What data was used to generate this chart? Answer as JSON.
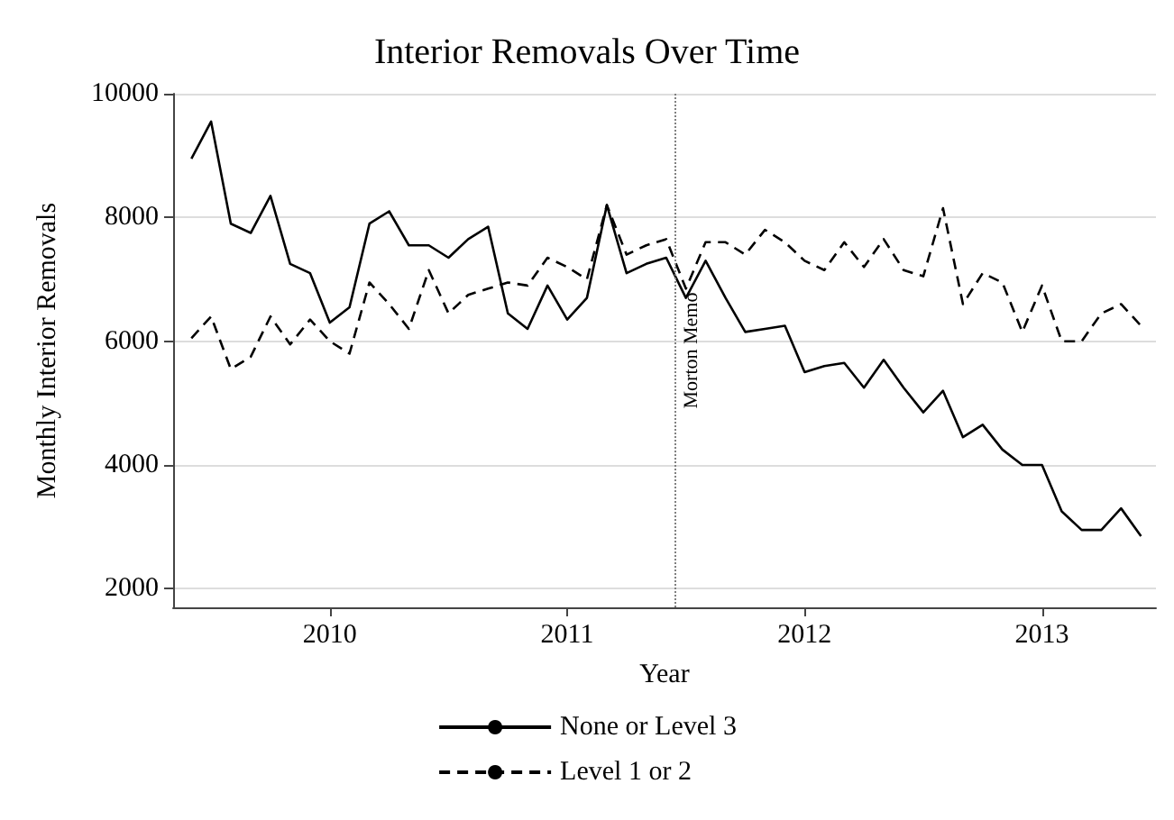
{
  "chart_data": {
    "type": "line",
    "title": "Interior Removals Over Time",
    "xlabel": "Year",
    "ylabel": "Monthly Interior Removals",
    "x": [
      2009.417,
      2009.5,
      2009.583,
      2009.667,
      2009.75,
      2009.833,
      2009.917,
      2010.0,
      2010.083,
      2010.167,
      2010.25,
      2010.333,
      2010.417,
      2010.5,
      2010.583,
      2010.667,
      2010.75,
      2010.833,
      2010.917,
      2011.0,
      2011.083,
      2011.167,
      2011.25,
      2011.333,
      2011.417,
      2011.5,
      2011.583,
      2011.667,
      2011.75,
      2011.833,
      2011.917,
      2012.0,
      2012.083,
      2012.167,
      2012.25,
      2012.333,
      2012.417,
      2012.5,
      2012.583,
      2012.667,
      2012.75,
      2012.833,
      2012.917,
      2013.0,
      2013.083,
      2013.167,
      2013.25,
      2013.333,
      2013.417
    ],
    "series": [
      {
        "name": "None or Level 3",
        "color": "#000000",
        "line_style": "solid",
        "values": [
          8950,
          9550,
          7900,
          7750,
          8350,
          7250,
          7100,
          6300,
          6550,
          7900,
          8100,
          7550,
          7550,
          7350,
          7650,
          7850,
          6450,
          6200,
          6900,
          6350,
          6700,
          8200,
          7100,
          7250,
          7350,
          6700,
          7300,
          6700,
          6150,
          6200,
          6250,
          5500,
          5600,
          5650,
          5250,
          5700,
          5250,
          4850,
          5200,
          4450,
          4650,
          4250,
          4000,
          4000,
          3250,
          2950,
          2950,
          3300,
          2850
        ]
      },
      {
        "name": "Level 1 or 2",
        "color": "#000000",
        "line_style": "dashed",
        "values": [
          6050,
          6400,
          5550,
          5750,
          6400,
          5950,
          6350,
          6000,
          5800,
          6950,
          6600,
          6200,
          7150,
          6450,
          6750,
          6850,
          6950,
          6900,
          7350,
          7200,
          7000,
          8200,
          7400,
          7550,
          7650,
          6850,
          7600,
          7600,
          7400,
          7800,
          7600,
          7300,
          7150,
          7600,
          7200,
          7650,
          7150,
          7050,
          8150,
          6600,
          7100,
          6950,
          6150,
          6900,
          6000,
          6000,
          6450,
          6600,
          6250
        ]
      }
    ],
    "xlim": [
      2009.34,
      2013.48
    ],
    "xticks": [
      2010,
      2011,
      2012,
      2013
    ],
    "ylim": [
      1700,
      10000
    ],
    "yticks": [
      2000,
      4000,
      6000,
      8000,
      10000
    ],
    "grid": "y",
    "legend": "bottom",
    "marker": "none",
    "ref_lines": [
      {
        "axis": "x",
        "value": 2011.45,
        "label": "Morton Memo",
        "color": "#808080",
        "line_style": "dotted"
      }
    ]
  }
}
